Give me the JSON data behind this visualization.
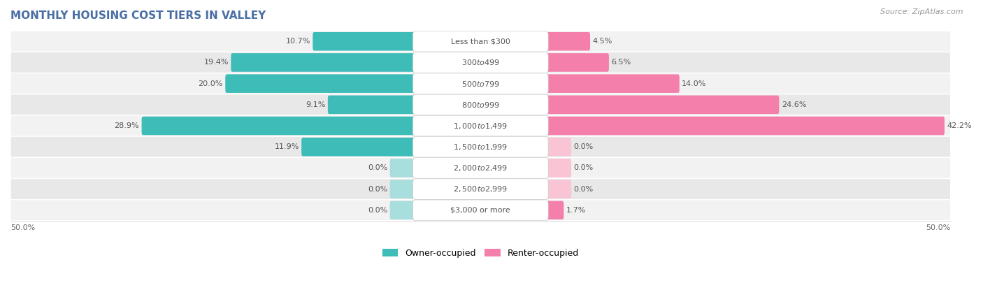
{
  "title": "MONTHLY HOUSING COST TIERS IN VALLEY",
  "source": "Source: ZipAtlas.com",
  "categories": [
    "Less than $300",
    "$300 to $499",
    "$500 to $799",
    "$800 to $999",
    "$1,000 to $1,499",
    "$1,500 to $1,999",
    "$2,000 to $2,499",
    "$2,500 to $2,999",
    "$3,000 or more"
  ],
  "owner_values": [
    10.7,
    19.4,
    20.0,
    9.1,
    28.9,
    11.9,
    0.0,
    0.0,
    0.0
  ],
  "renter_values": [
    4.5,
    6.5,
    14.0,
    24.6,
    42.2,
    0.0,
    0.0,
    0.0,
    1.7
  ],
  "owner_color": "#3dbcb8",
  "renter_color": "#f47fab",
  "owner_color_zero": "#a8dedd",
  "renter_color_zero": "#f9c4d4",
  "row_bg_even": "#f2f2f2",
  "row_bg_odd": "#e8e8e8",
  "axis_limit": 50.0,
  "legend_owner": "Owner-occupied",
  "legend_renter": "Renter-occupied",
  "title_fontsize": 11,
  "source_fontsize": 8,
  "label_fontsize": 8,
  "category_fontsize": 8,
  "title_color": "#4a6fa5",
  "label_color": "#555555",
  "category_label_color": "#555555"
}
